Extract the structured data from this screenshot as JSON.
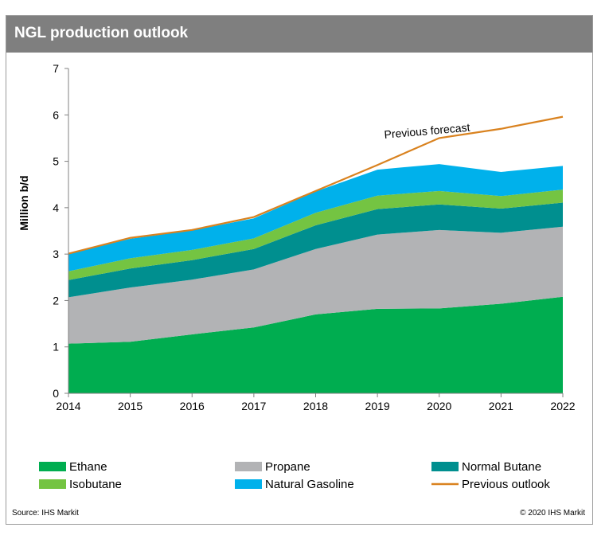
{
  "header": {
    "title": "NGL production outlook"
  },
  "footer": {
    "source": "Source: IHS Markit",
    "copyright": "© 2020 IHS Markit"
  },
  "chart_data": {
    "type": "area",
    "stacked": true,
    "title": "NGL production outlook",
    "ylabel": "Million b/d",
    "xlabel": "",
    "ylim": [
      0,
      7
    ],
    "yticks": [
      0,
      1,
      2,
      3,
      4,
      5,
      6,
      7
    ],
    "categories": [
      "2014",
      "2015",
      "2016",
      "2017",
      "2018",
      "2019",
      "2020",
      "2021",
      "2022"
    ],
    "series": [
      {
        "name": "Ethane",
        "color": "#00ad50",
        "values": [
          1.07,
          1.11,
          1.27,
          1.42,
          1.7,
          1.82,
          1.83,
          1.93,
          2.08
        ]
      },
      {
        "name": "Propane",
        "color": "#b2b3b5",
        "values": [
          1.0,
          1.17,
          1.18,
          1.25,
          1.41,
          1.6,
          1.69,
          1.53,
          1.51
        ]
      },
      {
        "name": "Normal Butane",
        "color": "#008f8f",
        "values": [
          0.37,
          0.41,
          0.42,
          0.44,
          0.51,
          0.55,
          0.55,
          0.52,
          0.52
        ]
      },
      {
        "name": "Isobutane",
        "color": "#74c442",
        "values": [
          0.19,
          0.22,
          0.22,
          0.23,
          0.27,
          0.29,
          0.29,
          0.27,
          0.28
        ]
      },
      {
        "name": "Natural Gasoline",
        "color": "#00b1eb",
        "values": [
          0.38,
          0.42,
          0.42,
          0.43,
          0.46,
          0.56,
          0.58,
          0.52,
          0.51
        ]
      }
    ],
    "previous_outlook": {
      "name": "Previous outlook",
      "color": "#d9821f",
      "values": [
        3.01,
        3.35,
        3.52,
        3.8,
        4.36,
        4.92,
        5.5,
        5.7,
        5.96
      ]
    },
    "annotations": [
      {
        "text": "Previous forecast"
      }
    ],
    "legend": {
      "position": "bottom",
      "items": [
        {
          "label": "Ethane",
          "color": "#00ad50",
          "kind": "swatch"
        },
        {
          "label": "Propane",
          "color": "#b2b3b5",
          "kind": "swatch"
        },
        {
          "label": "Normal Butane",
          "color": "#008f8f",
          "kind": "swatch"
        },
        {
          "label": "Isobutane",
          "color": "#74c442",
          "kind": "swatch"
        },
        {
          "label": "Natural Gasoline",
          "color": "#00b1eb",
          "kind": "swatch"
        },
        {
          "label": "Previous outlook",
          "color": "#d9821f",
          "kind": "line"
        }
      ]
    },
    "grid": false
  }
}
